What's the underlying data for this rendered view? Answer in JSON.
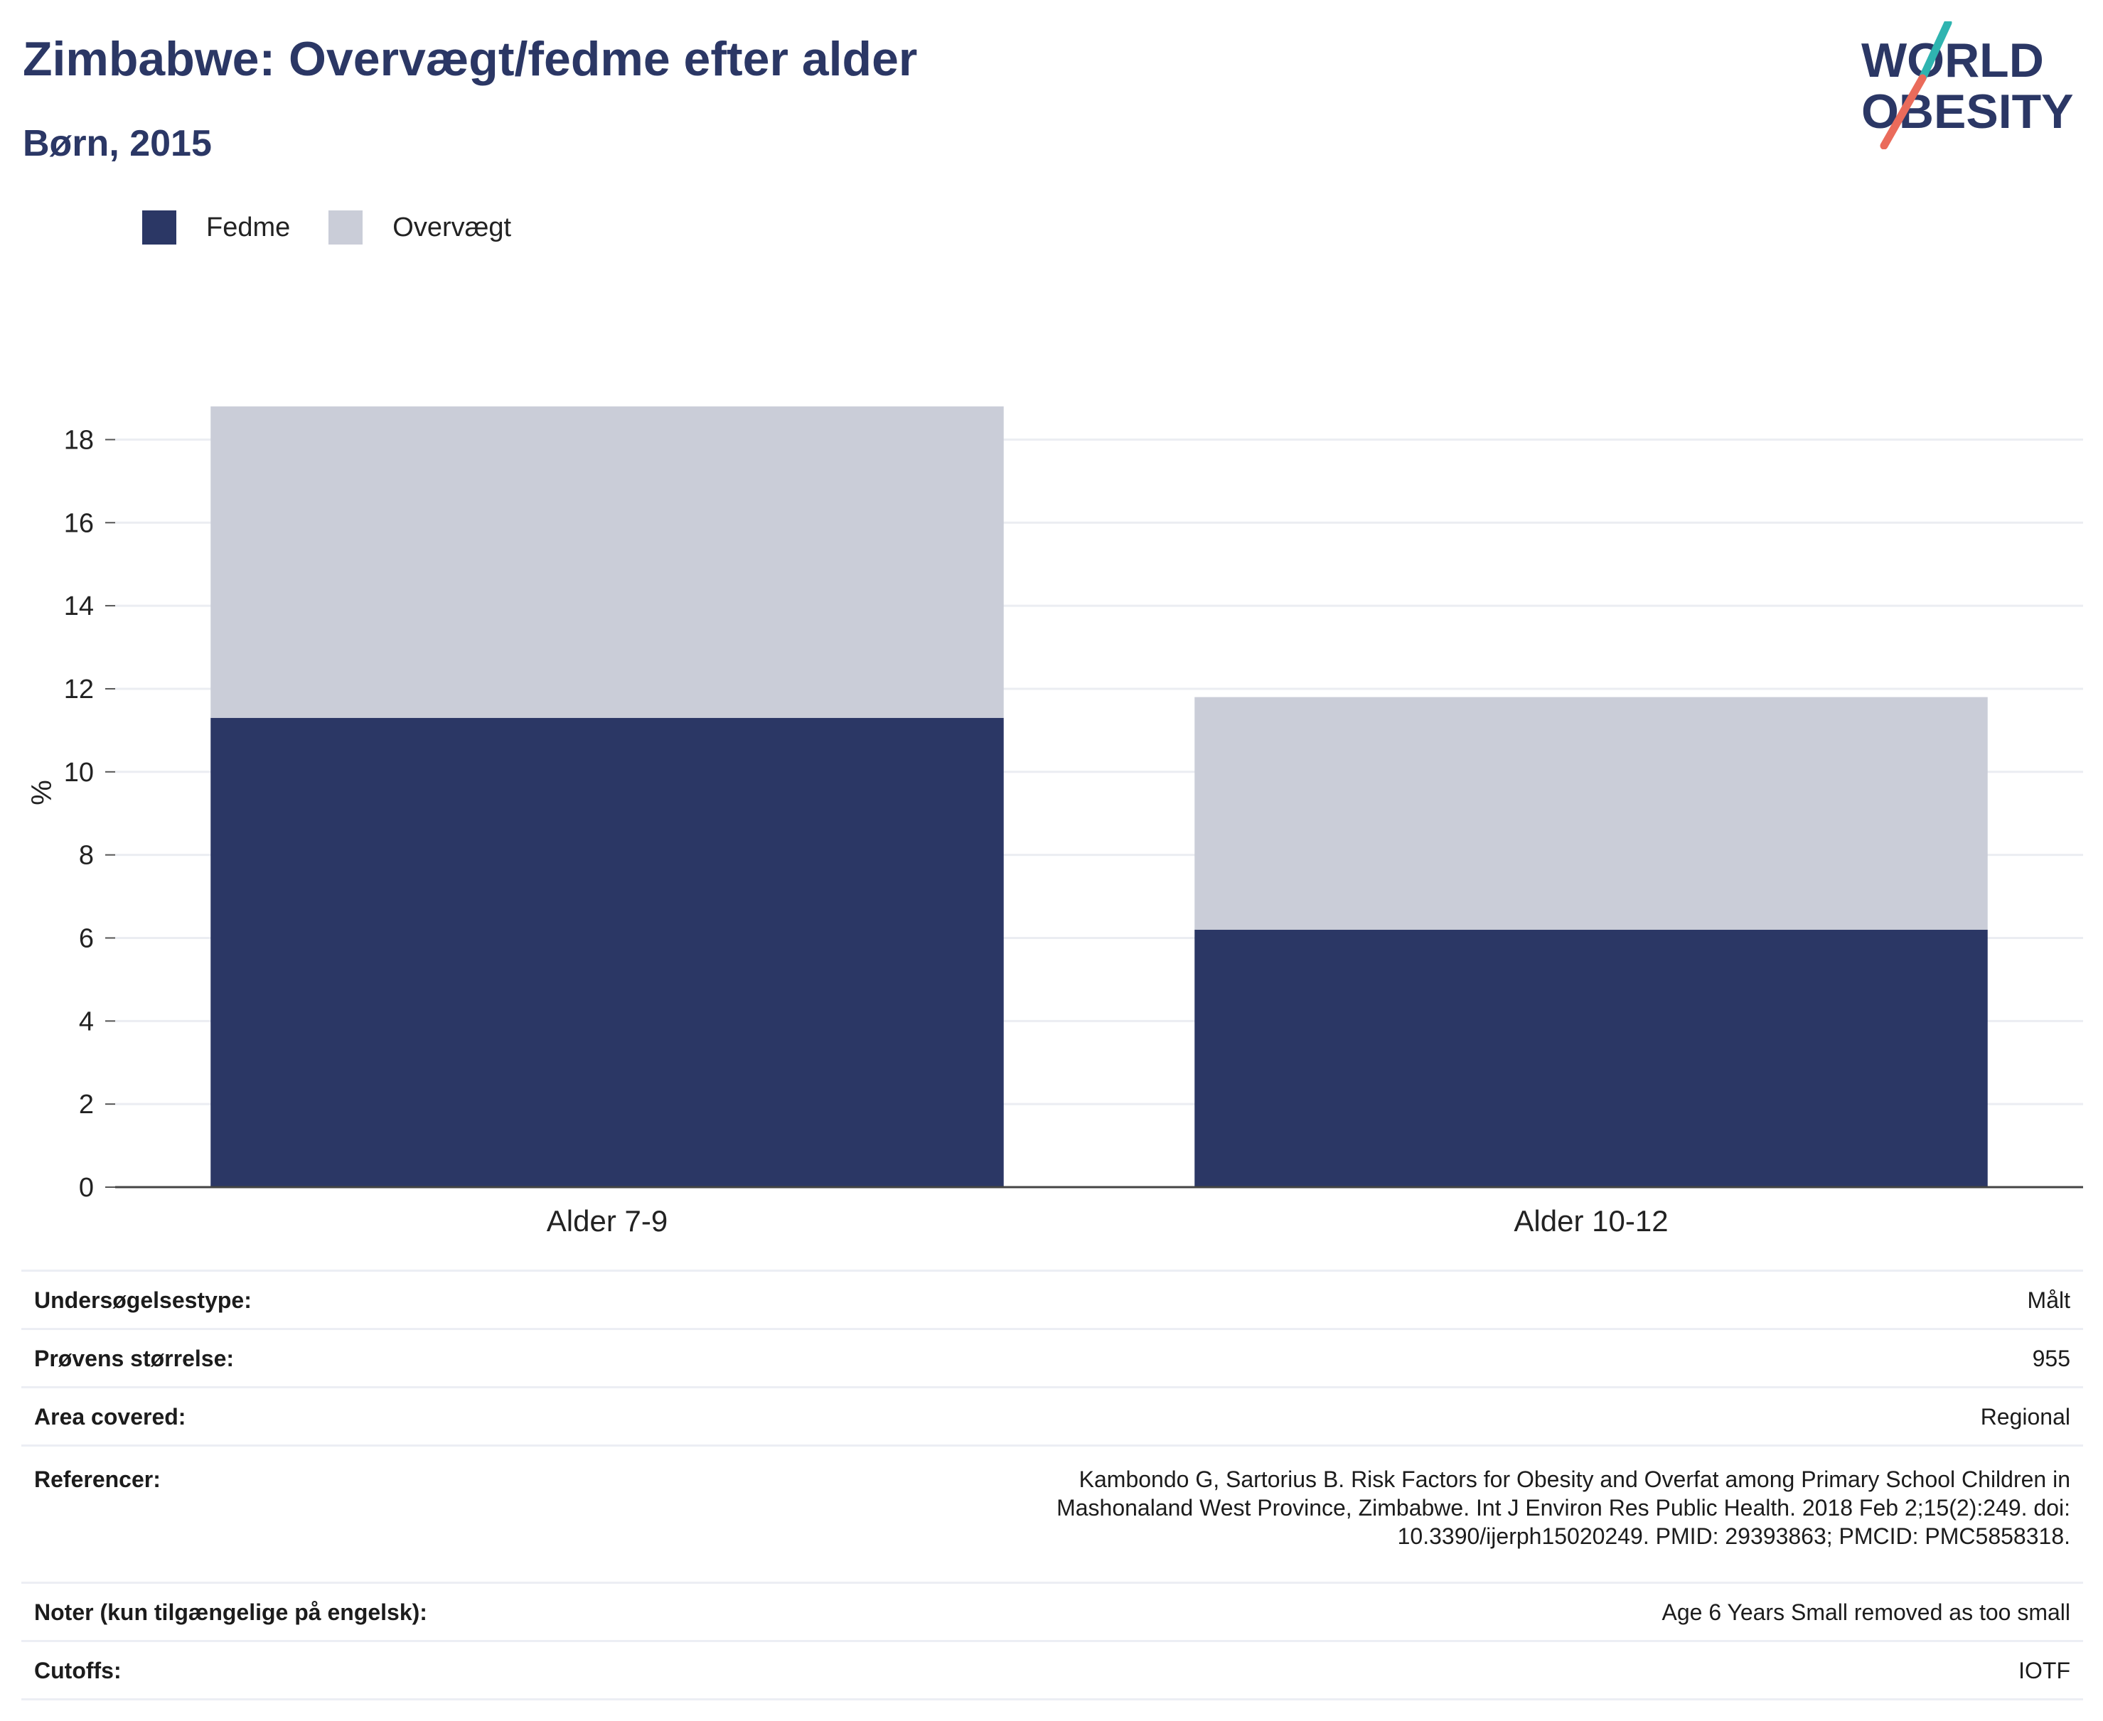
{
  "header": {
    "title": "Zimbabwe: Overvægt/fedme efter alder",
    "subtitle": "Børn, 2015"
  },
  "logo": {
    "line1": "WORLD",
    "line2": "OBESITY",
    "colors": {
      "navy": "#2b3765",
      "teal": "#2fb4b0",
      "coral": "#ea6b5b"
    }
  },
  "colors": {
    "obesity": "#2b3765",
    "overweight": "#cacdd8",
    "grid": "#ebedf2",
    "axis": "#555555"
  },
  "chart_data": {
    "type": "bar",
    "stacked": true,
    "categories": [
      "Alder 7-9",
      "Alder 10-12"
    ],
    "series": [
      {
        "name": "Fedme",
        "values": [
          11.3,
          6.2
        ],
        "color": "#2b3765"
      },
      {
        "name": "Overvægt",
        "values": [
          7.5,
          5.6
        ],
        "color": "#cacdd8"
      }
    ],
    "ylabel": "%",
    "ylim": [
      0,
      19
    ],
    "yticks": [
      0,
      2,
      4,
      6,
      8,
      10,
      12,
      14,
      16,
      18
    ],
    "grid": true,
    "legend_position": "top-left"
  },
  "info": [
    {
      "label": "Undersøgelsestype:",
      "value": "Målt"
    },
    {
      "label": "Prøvens størrelse:",
      "value": "955"
    },
    {
      "label": "Area covered:",
      "value": "Regional"
    },
    {
      "label": "Referencer:",
      "value": "Kambondo G, Sartorius B. Risk Factors for Obesity and Overfat among Primary School Children in Mashonaland West Province, Zimbabwe. Int J Environ Res Public Health. 2018 Feb 2;15(2):249. doi: 10.3390/ijerph15020249. PMID: 29393863; PMCID: PMC5858318."
    },
    {
      "label": "Noter (kun tilgængelige på engelsk):",
      "value": "Age 6 Years Small removed as too small"
    },
    {
      "label": "Cutoffs:",
      "value": "IOTF"
    }
  ]
}
